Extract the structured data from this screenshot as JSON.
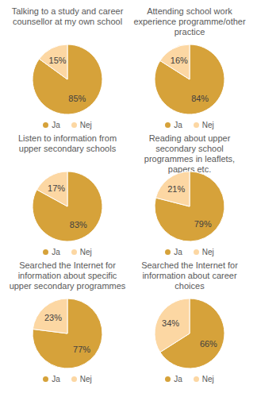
{
  "chart_data": [
    {
      "type": "pie",
      "title": "Talking to a study and career counsellor at my own school",
      "categories": [
        "Ja",
        "Nej"
      ],
      "values": [
        85,
        15
      ],
      "value_labels": [
        "85%",
        "15%"
      ],
      "colors": [
        "#d6a23a",
        "#fcd7a3"
      ],
      "data_labels": true,
      "legend": "bottom"
    },
    {
      "type": "pie",
      "title": "Attending school work experience programme/other practice",
      "categories": [
        "Ja",
        "Nej"
      ],
      "values": [
        84,
        16
      ],
      "value_labels": [
        "84%",
        "16%"
      ],
      "colors": [
        "#d6a23a",
        "#fcd7a3"
      ],
      "data_labels": true,
      "legend": "bottom"
    },
    {
      "type": "pie",
      "title": "Listen to information from upper secondary schools",
      "categories": [
        "Ja",
        "Nej"
      ],
      "values": [
        83,
        17
      ],
      "value_labels": [
        "83%",
        "17%"
      ],
      "colors": [
        "#d6a23a",
        "#fcd7a3"
      ],
      "data_labels": true,
      "legend": "bottom"
    },
    {
      "type": "pie",
      "title": "Reading about upper secondary school programmes in leaflets, papers etc.",
      "categories": [
        "Ja",
        "Nej"
      ],
      "values": [
        79,
        21
      ],
      "value_labels": [
        "79%",
        "21%"
      ],
      "colors": [
        "#d6a23a",
        "#fcd7a3"
      ],
      "data_labels": true,
      "legend": "bottom"
    },
    {
      "type": "pie",
      "title": "Searched the Internet for information about specific upper secondary programmes",
      "categories": [
        "Ja",
        "Nej"
      ],
      "values": [
        77,
        23
      ],
      "value_labels": [
        "77%",
        "23%"
      ],
      "colors": [
        "#d6a23a",
        "#fcd7a3"
      ],
      "data_labels": true,
      "legend": "bottom"
    },
    {
      "type": "pie",
      "title": "Searched the Internet for information about career choices",
      "categories": [
        "Ja",
        "Nej"
      ],
      "values": [
        66,
        34
      ],
      "value_labels": [
        "66%",
        "34%"
      ],
      "colors": [
        "#d6a23a",
        "#fcd7a3"
      ],
      "data_labels": true,
      "legend": "bottom"
    }
  ]
}
